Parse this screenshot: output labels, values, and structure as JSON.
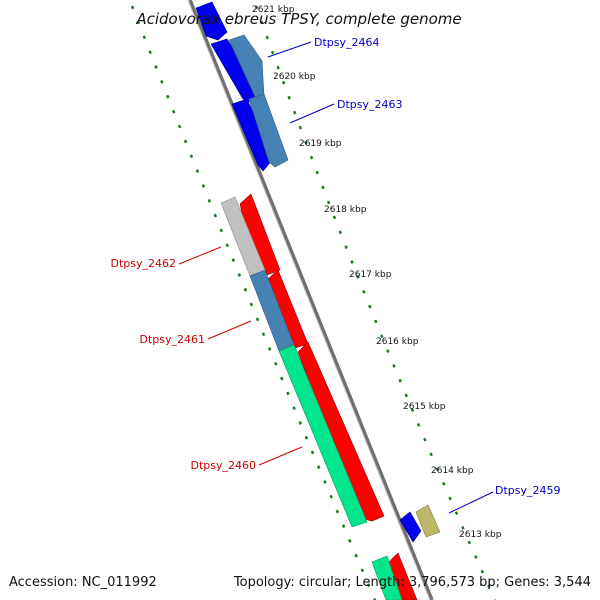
{
  "title": "Acidovorax ebreus TPSY, complete genome",
  "accession": "Accession: NC_011992",
  "topology": "Topology: circular; Length: 3,796,573 bp; Genes: 3,544",
  "colors": {
    "backbone": "#7a7a7a",
    "ticks": "#1f7a1f",
    "label_forward": "#0000cc",
    "label_reverse": "#cc0000",
    "gene_blue": "#0000ee",
    "gene_steelblue": "#4682b4",
    "gene_red": "#ff0000",
    "gene_gray": "#c0c0c0",
    "gene_green": "#00e68c",
    "gene_khaki": "#bdb76b"
  },
  "tick_labels": [
    "2621 kbp",
    "2620 kbp",
    "2619 kbp",
    "2618 kbp",
    "2617 kbp",
    "2616 kbp",
    "2615 kbp",
    "2614 kbp",
    "2613 kbp"
  ],
  "gene_labels": [
    "Dtpsy_2464",
    "Dtpsy_2463",
    "Dtpsy_2462",
    "Dtpsy_2461",
    "Dtpsy_2460",
    "Dtpsy_2459"
  ]
}
